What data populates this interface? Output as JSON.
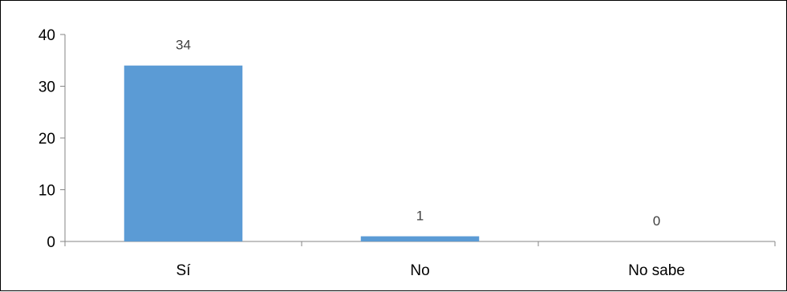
{
  "chart_data": {
    "type": "bar",
    "categories": [
      "Sí",
      "No",
      "No sabe"
    ],
    "values": [
      34,
      1,
      0
    ],
    "data_labels": [
      "34",
      "1",
      "0"
    ],
    "ylim": [
      0,
      40
    ],
    "yticks": [
      0,
      10,
      20,
      30,
      40
    ],
    "grid": false,
    "legend": "none",
    "bar_color": "#5B9BD5",
    "title": "",
    "xlabel": "",
    "ylabel": ""
  }
}
